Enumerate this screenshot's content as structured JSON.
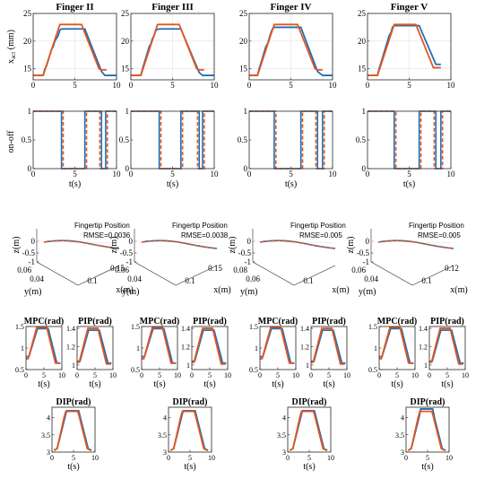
{
  "colors": {
    "blue": "#1f6fb5",
    "orange": "#e8541c",
    "grid": "#e1e1e1",
    "axis": "#262626"
  },
  "fingers": [
    "Finger II",
    "Finger III",
    "Finger IV",
    "Finger V"
  ],
  "labels": {
    "x_act": "x",
    "x_act_sub": "act",
    "x_act_unit": "(mm)",
    "onoff": "on-off",
    "t": "t(s)",
    "z": "z(m)",
    "y": "y(m)",
    "x": "x(m)",
    "fingertip": "Fingertip Position",
    "mpc": "MPC(rad)",
    "pip": "PIP(rad)",
    "dip": "DIP(rad)"
  },
  "ticks": {
    "t0_10": [
      "0",
      "5",
      "10"
    ],
    "xact": [
      "15",
      "20",
      "25"
    ],
    "onoff": [
      "0",
      "0.5",
      "1"
    ],
    "z": [
      "0",
      "-0.5",
      "-1"
    ],
    "mpc": [
      "0.5",
      "1",
      "1.5"
    ],
    "pip_a": [
      "1",
      "1.2",
      "1.4"
    ],
    "pip_b": [
      "1",
      "1.1",
      "1.2",
      "1.3"
    ],
    "dip": [
      "3",
      "3.5",
      "4"
    ]
  },
  "chart_data": [
    {
      "type": "line",
      "title": "Finger II",
      "ylabel": "x_act (mm)",
      "xlabel": "",
      "xlim": [
        0,
        10
      ],
      "ylim": [
        13,
        25
      ],
      "series": [
        {
          "color": "blue",
          "x": [
            0,
            1.2,
            1.4,
            1.6,
            1.8,
            2.0,
            2.2,
            2.4,
            2.6,
            2.8,
            3.0,
            3.2,
            3.4,
            6.2,
            8.2,
            8.6,
            10
          ],
          "y": [
            13.8,
            13.8,
            15,
            15.5,
            16.5,
            17.5,
            18.5,
            19,
            20,
            20.5,
            21,
            22,
            22.2,
            22.2,
            14.5,
            13.8,
            13.8
          ]
        },
        {
          "color": "orange",
          "x": [
            0,
            1.2,
            3.2,
            5.8,
            7.9,
            8.2,
            8.8
          ],
          "y": [
            13.8,
            13.8,
            23,
            23,
            15,
            14.8,
            14.8
          ]
        }
      ]
    },
    {
      "type": "line",
      "title": "Finger III",
      "xlim": [
        0,
        10
      ],
      "ylim": [
        13,
        25
      ],
      "series": [
        {
          "color": "blue",
          "x": [
            0,
            1.2,
            1.4,
            1.6,
            1.8,
            2.0,
            2.2,
            2.4,
            2.6,
            2.8,
            3.0,
            3.4,
            6.0,
            8.2,
            8.6,
            10
          ],
          "y": [
            13.8,
            13.8,
            15,
            16,
            17,
            18,
            19,
            19.5,
            20.5,
            21,
            22,
            22.2,
            22.2,
            14.3,
            13.8,
            13.8
          ]
        },
        {
          "color": "orange",
          "x": [
            0,
            1.2,
            3.2,
            5.8,
            7.9,
            8.2,
            8.8
          ],
          "y": [
            13.8,
            13.8,
            23,
            23,
            15,
            14.8,
            14.8
          ]
        }
      ]
    },
    {
      "type": "line",
      "title": "Finger IV",
      "xlim": [
        0,
        10
      ],
      "ylim": [
        13,
        25
      ],
      "series": [
        {
          "color": "blue",
          "x": [
            0,
            1.0,
            1.2,
            1.4,
            1.6,
            1.8,
            2.0,
            2.2,
            2.4,
            2.6,
            2.8,
            3.0,
            6.2,
            8.2,
            8.8,
            10
          ],
          "y": [
            13.8,
            13.8,
            15,
            16,
            17,
            18,
            19,
            19.5,
            20.5,
            21.5,
            22.2,
            22.5,
            22.5,
            14.5,
            13.8,
            13.8
          ]
        },
        {
          "color": "orange",
          "x": [
            0,
            1.0,
            3.0,
            5.8,
            7.9,
            8.2,
            8.8
          ],
          "y": [
            13.8,
            13.8,
            23,
            23,
            15,
            14.8,
            14.8
          ]
        }
      ]
    },
    {
      "type": "line",
      "title": "Finger V",
      "xlim": [
        0,
        10
      ],
      "ylim": [
        13,
        25
      ],
      "series": [
        {
          "color": "blue",
          "x": [
            0,
            1.2,
            1.4,
            1.6,
            1.8,
            2.0,
            2.2,
            2.4,
            2.6,
            2.8,
            3.0,
            3.2,
            6.2,
            8.2,
            8.8
          ],
          "y": [
            13.8,
            13.8,
            15,
            16,
            17,
            18,
            19,
            20,
            21,
            21.5,
            22.5,
            22.8,
            22.8,
            15.8,
            15.8
          ]
        },
        {
          "color": "orange",
          "x": [
            0,
            1.2,
            3.2,
            5.8,
            7.9,
            8.8
          ],
          "y": [
            13.8,
            13.8,
            23,
            23,
            15.2,
            15.2
          ]
        }
      ]
    },
    {
      "type": "line",
      "ylabel": "on-off",
      "xlabel": "t(s)",
      "xlim": [
        0,
        10
      ],
      "ylim": [
        0,
        1
      ],
      "series": [
        {
          "color": "blue",
          "x": [
            0,
            3.4,
            3.4,
            6.2,
            6.2,
            8.2,
            8.2,
            8.7,
            8.7,
            10
          ],
          "y": [
            1,
            1,
            0,
            0,
            1,
            1,
            0,
            0,
            1,
            1
          ]
        },
        {
          "color": "orange",
          "dashed": true,
          "x": [
            0,
            3.6,
            3.6,
            6.4,
            6.4,
            8.0,
            8.0,
            8.9,
            8.9,
            10
          ],
          "y": [
            1,
            1,
            0,
            0,
            1,
            1,
            0,
            0,
            1,
            1
          ]
        }
      ]
    },
    {
      "type": "line",
      "xlabel": "t(s)",
      "xlim": [
        0,
        10
      ],
      "ylim": [
        0,
        1
      ],
      "series": [
        {
          "color": "blue",
          "x": [
            0,
            3.4,
            3.4,
            6.0,
            6.0,
            8.2,
            8.2,
            8.6,
            8.6,
            10
          ],
          "y": [
            1,
            1,
            0,
            0,
            1,
            1,
            0,
            0,
            1,
            1
          ]
        },
        {
          "color": "orange",
          "dashed": true,
          "x": [
            0,
            3.6,
            3.6,
            6.2,
            6.2,
            8.0,
            8.0,
            8.8,
            8.8,
            10
          ],
          "y": [
            1,
            1,
            0,
            0,
            1,
            1,
            0,
            0,
            1,
            1
          ]
        }
      ]
    },
    {
      "type": "line",
      "xlabel": "t(s)",
      "xlim": [
        0,
        10
      ],
      "ylim": [
        0,
        1
      ],
      "series": [
        {
          "color": "blue",
          "x": [
            0,
            3.0,
            3.0,
            6.2,
            6.2,
            8.2,
            8.2,
            8.8,
            8.8,
            10
          ],
          "y": [
            1,
            1,
            0,
            0,
            1,
            1,
            0,
            0,
            1,
            1
          ]
        },
        {
          "color": "orange",
          "dashed": true,
          "x": [
            0,
            3.2,
            3.2,
            6.4,
            6.4,
            8.0,
            8.0,
            9.0,
            9.0,
            10
          ],
          "y": [
            1,
            1,
            0,
            0,
            1,
            1,
            0,
            0,
            1,
            1
          ]
        }
      ]
    },
    {
      "type": "line",
      "xlabel": "t(s)",
      "xlim": [
        0,
        10
      ],
      "ylim": [
        0,
        1
      ],
      "series": [
        {
          "color": "blue",
          "x": [
            0,
            3.2,
            3.2,
            6.2,
            6.2,
            8.2,
            8.2,
            8.8,
            8.8,
            10
          ],
          "y": [
            1,
            1,
            0,
            0,
            1,
            1,
            0,
            0,
            1,
            1
          ]
        },
        {
          "color": "orange",
          "dashed": true,
          "x": [
            0,
            3.4,
            3.4,
            6.4,
            6.4,
            8.0,
            8.0,
            9.0,
            9.0,
            10
          ],
          "y": [
            1,
            1,
            0,
            0,
            1,
            1,
            0,
            0,
            1,
            1
          ]
        }
      ]
    },
    {
      "type": "line",
      "subtype": "3d",
      "annotation": "Fingertip Position",
      "rmse": "RMSE=0.0036",
      "zlabel": "z(m)",
      "ylabel": "y(m)",
      "xlabel": "x(m)",
      "zlim": [
        -1,
        0
      ],
      "y_ticks": [
        "0.06",
        "0.04"
      ],
      "x_ticks": [
        "0.1",
        "0.15"
      ]
    },
    {
      "type": "line",
      "subtype": "3d",
      "annotation": "Fingertip Position",
      "rmse": "RMSE=0.0038",
      "zlabel": "z(m)",
      "ylabel": "y(m)",
      "xlabel": "x(m)",
      "zlim": [
        -1,
        0
      ],
      "y_ticks": [
        "0.06",
        "0.04"
      ],
      "x_ticks": [
        "0.1",
        "0.15"
      ]
    },
    {
      "type": "line",
      "subtype": "3d",
      "annotation": "Fingertip Position",
      "rmse": "RMSE=0.005",
      "zlabel": "z(m)",
      "ylabel": "y(m)",
      "xlabel": "x(m)",
      "zlim": [
        -1,
        0
      ],
      "y_ticks": [
        "0.08",
        "0.06"
      ],
      "x_ticks": [
        "0.1"
      ]
    },
    {
      "type": "line",
      "subtype": "3d",
      "annotation": "Fingertip Position",
      "rmse": "RMSE=0.005",
      "zlabel": "z(m)",
      "ylabel": "y(m)",
      "xlabel": "x(m)",
      "zlim": [
        -1,
        0
      ],
      "y_ticks": [
        "0.06",
        "0.04"
      ],
      "x_ticks": [
        "0.1",
        "0.12"
      ]
    }
  ]
}
